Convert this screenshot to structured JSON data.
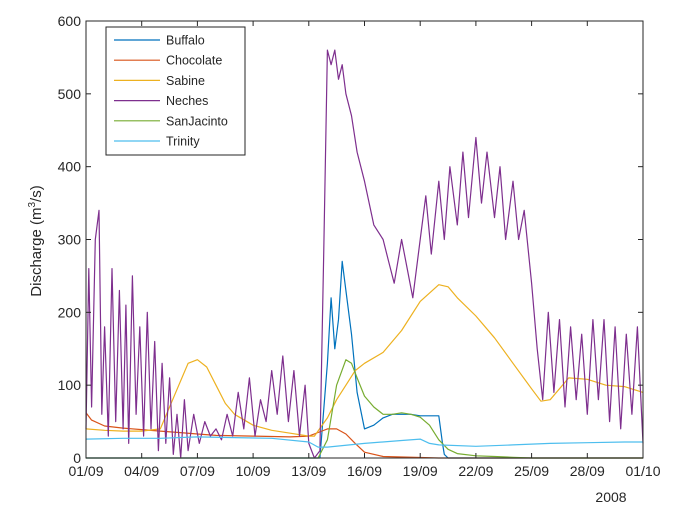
{
  "chart_data": {
    "type": "line",
    "title": "",
    "xlabel": "",
    "ylabel": "Discharge (m³/s)",
    "ylabel_parts": {
      "prefix": "Discharge (m",
      "sup": "3",
      "suffix": "/s)"
    },
    "x_unit": "day of Sep 2008 (1 = 01/09, 31 = 01/10)",
    "xlim": [
      1,
      31
    ],
    "ylim": [
      0,
      600
    ],
    "x_ticks": [
      1,
      4,
      7,
      10,
      13,
      16,
      19,
      22,
      25,
      28,
      31
    ],
    "x_tick_labels": [
      "01/09",
      "04/09",
      "07/09",
      "10/09",
      "13/09",
      "16/09",
      "19/09",
      "22/09",
      "25/09",
      "28/09",
      "01/10"
    ],
    "x_secondary_label": "2008",
    "y_ticks": [
      0,
      100,
      200,
      300,
      400,
      500,
      600
    ],
    "y_tick_labels": [
      "0",
      "100",
      "200",
      "300",
      "400",
      "500",
      "600"
    ],
    "grid": false,
    "legend_position": "top-left",
    "series": [
      {
        "name": "Buffalo",
        "color": "#0072BD",
        "x": [
          1,
          13,
          13.6,
          14.0,
          14.2,
          14.4,
          14.6,
          14.8,
          15.0,
          15.3,
          15.6,
          16.0,
          16.5,
          17.0,
          17.5,
          18.0,
          18.5,
          19.0,
          19.3,
          19.6,
          20.0,
          20.2,
          20.3,
          20.5,
          31
        ],
        "y": [
          0,
          0,
          0,
          130,
          220,
          150,
          190,
          270,
          230,
          170,
          90,
          40,
          45,
          55,
          60,
          60,
          60,
          58,
          58,
          58,
          58,
          20,
          5,
          0,
          0
        ]
      },
      {
        "name": "Chocolate",
        "color": "#D95319",
        "x": [
          1,
          1.3,
          2,
          3,
          4,
          5,
          6,
          7,
          8,
          10,
          12,
          13,
          13.5,
          14,
          14.5,
          15,
          15.5,
          16,
          17,
          20,
          31
        ],
        "y": [
          62,
          52,
          44,
          41,
          39,
          37,
          35,
          33,
          31,
          30,
          29,
          30,
          35,
          40,
          40,
          33,
          20,
          8,
          2,
          0,
          0
        ]
      },
      {
        "name": "Sabine",
        "color": "#EDB120",
        "x": [
          1,
          2,
          3,
          4,
          5,
          6,
          6.5,
          7,
          7.5,
          8,
          8.5,
          9,
          10,
          11,
          12,
          13,
          13.3,
          14,
          14.5,
          15,
          15.5,
          16,
          17,
          18,
          19,
          20,
          20.5,
          21,
          22,
          23,
          24,
          25,
          25.5,
          26,
          27,
          28,
          29,
          30,
          31
        ],
        "y": [
          40,
          38,
          37,
          37,
          40,
          100,
          130,
          135,
          125,
          100,
          75,
          60,
          45,
          38,
          34,
          30,
          30,
          55,
          80,
          100,
          120,
          130,
          145,
          175,
          215,
          238,
          235,
          220,
          195,
          165,
          130,
          95,
          78,
          80,
          110,
          108,
          100,
          98,
          90
        ]
      },
      {
        "name": "Neches",
        "color": "#7E2F8E",
        "x": [
          1,
          1.15,
          1.3,
          1.5,
          1.7,
          1.85,
          2.0,
          2.2,
          2.4,
          2.6,
          2.8,
          3.0,
          3.15,
          3.3,
          3.5,
          3.7,
          3.9,
          4.1,
          4.3,
          4.5,
          4.7,
          4.9,
          5.1,
          5.3,
          5.5,
          5.7,
          5.9,
          6.1,
          6.3,
          6.5,
          6.8,
          7.1,
          7.4,
          7.7,
          8.0,
          8.3,
          8.6,
          8.9,
          9.2,
          9.5,
          9.8,
          10.1,
          10.4,
          10.7,
          11.0,
          11.3,
          11.6,
          11.9,
          12.2,
          12.5,
          12.8,
          13.0,
          13.3,
          13.6,
          13.8,
          14.0,
          14.2,
          14.4,
          14.6,
          14.8,
          15.0,
          15.3,
          15.6,
          16.0,
          16.5,
          17.0,
          17.3,
          17.6,
          18.0,
          18.3,
          18.6,
          19.0,
          19.3,
          19.6,
          20.0,
          20.3,
          20.6,
          21.0,
          21.3,
          21.6,
          22.0,
          22.3,
          22.6,
          23.0,
          23.3,
          23.6,
          24.0,
          24.3,
          24.6,
          25.0,
          25.3,
          25.6,
          25.9,
          26.2,
          26.5,
          26.8,
          27.1,
          27.4,
          27.7,
          28.0,
          28.3,
          28.6,
          28.9,
          29.2,
          29.5,
          29.8,
          30.1,
          30.4,
          30.7,
          31.0
        ],
        "y": [
          40,
          260,
          70,
          300,
          340,
          60,
          180,
          30,
          260,
          50,
          230,
          40,
          210,
          20,
          250,
          60,
          180,
          30,
          200,
          40,
          160,
          10,
          130,
          20,
          110,
          5,
          60,
          0,
          80,
          10,
          60,
          20,
          50,
          30,
          40,
          25,
          60,
          30,
          90,
          40,
          110,
          30,
          80,
          50,
          120,
          60,
          140,
          50,
          120,
          30,
          100,
          20,
          0,
          10,
          280,
          560,
          540,
          560,
          520,
          540,
          500,
          470,
          420,
          380,
          320,
          300,
          270,
          240,
          300,
          260,
          220,
          300,
          360,
          280,
          380,
          300,
          400,
          320,
          420,
          330,
          440,
          350,
          420,
          330,
          400,
          300,
          380,
          300,
          340,
          240,
          150,
          80,
          200,
          90,
          190,
          70,
          180,
          80,
          170,
          60,
          190,
          80,
          190,
          50,
          180,
          40,
          170,
          60,
          180,
          20
        ]
      },
      {
        "name": "SanJacinto",
        "color": "#77AC30",
        "x": [
          1,
          13.5,
          14,
          14.5,
          15,
          15.3,
          15.6,
          16,
          16.5,
          17,
          17.5,
          18,
          18.5,
          19,
          19.5,
          20,
          20.5,
          21,
          22,
          23,
          24,
          25,
          26,
          27,
          31
        ],
        "y": [
          0,
          0,
          25,
          100,
          135,
          130,
          110,
          85,
          70,
          60,
          60,
          62,
          60,
          56,
          45,
          25,
          12,
          6,
          3,
          2,
          1,
          0,
          0,
          0,
          0
        ]
      },
      {
        "name": "Trinity",
        "color": "#4DBEEE",
        "x": [
          1,
          3,
          5,
          7,
          9,
          11,
          13,
          13.5,
          14,
          16,
          18,
          19,
          19.5,
          20,
          22,
          24,
          26,
          28,
          30,
          31
        ],
        "y": [
          26,
          27,
          27,
          29,
          28,
          27,
          22,
          15,
          15,
          20,
          24,
          26,
          20,
          18,
          16,
          18,
          20,
          21,
          22,
          22
        ]
      }
    ]
  }
}
